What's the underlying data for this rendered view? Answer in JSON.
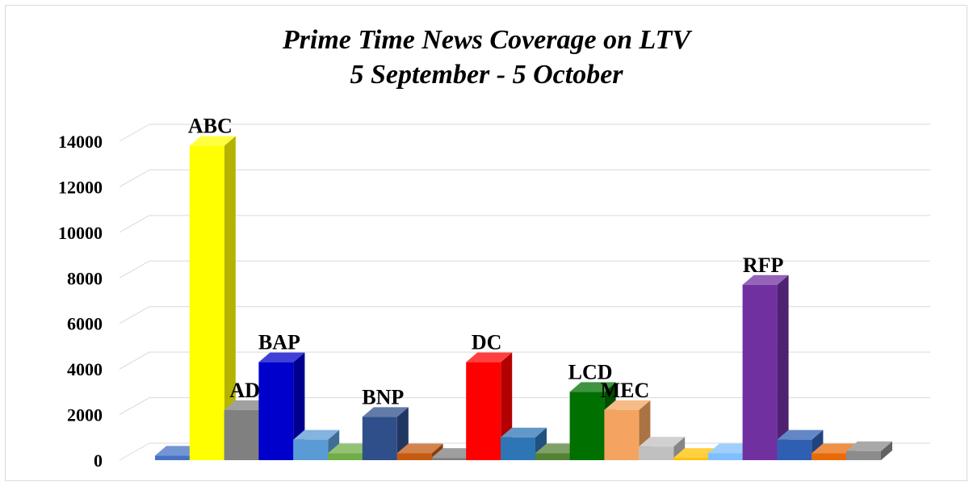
{
  "chart_data": {
    "type": "bar",
    "title": "Prime Time News Coverage on LTV",
    "subtitle": "5 September - 5 October",
    "xlabel": "",
    "ylabel": "",
    "ylim": [
      0,
      14000
    ],
    "yticks": [
      "0",
      "2000",
      "4000",
      "6000",
      "8000",
      "10000",
      "12000",
      "14000"
    ],
    "grid": true,
    "legend": "none",
    "bars": [
      {
        "label": "",
        "value": 200,
        "color": "#4472c4"
      },
      {
        "label": "ABC",
        "value": 13800,
        "color": "#ffff00"
      },
      {
        "label": "AD",
        "value": 2200,
        "color": "#808080"
      },
      {
        "label": "BAP",
        "value": 4300,
        "color": "#0000cc"
      },
      {
        "label": "",
        "value": 900,
        "color": "#5b9bd5"
      },
      {
        "label": "",
        "value": 300,
        "color": "#70ad47"
      },
      {
        "label": "BNP",
        "value": 1900,
        "color": "#2f4f8a"
      },
      {
        "label": "",
        "value": 300,
        "color": "#c55a11"
      },
      {
        "label": "",
        "value": 100,
        "color": "#7f7f7f"
      },
      {
        "label": "DC",
        "value": 4300,
        "color": "#ff0000"
      },
      {
        "label": "",
        "value": 1000,
        "color": "#2e75b6"
      },
      {
        "label": "",
        "value": 300,
        "color": "#548235"
      },
      {
        "label": "LCD",
        "value": 3000,
        "color": "#007000"
      },
      {
        "label": "MEC",
        "value": 2200,
        "color": "#f4a460"
      },
      {
        "label": "",
        "value": 600,
        "color": "#c0c0c0"
      },
      {
        "label": "",
        "value": 100,
        "color": "#ffc000"
      },
      {
        "label": "",
        "value": 300,
        "color": "#7fbfff"
      },
      {
        "label": "RFP",
        "value": 7700,
        "color": "#7030a0"
      },
      {
        "label": "",
        "value": 900,
        "color": "#2f5fb3"
      },
      {
        "label": "",
        "value": 300,
        "color": "#e86b0a"
      },
      {
        "label": "",
        "value": 400,
        "color": "#8c8c8c"
      }
    ]
  }
}
